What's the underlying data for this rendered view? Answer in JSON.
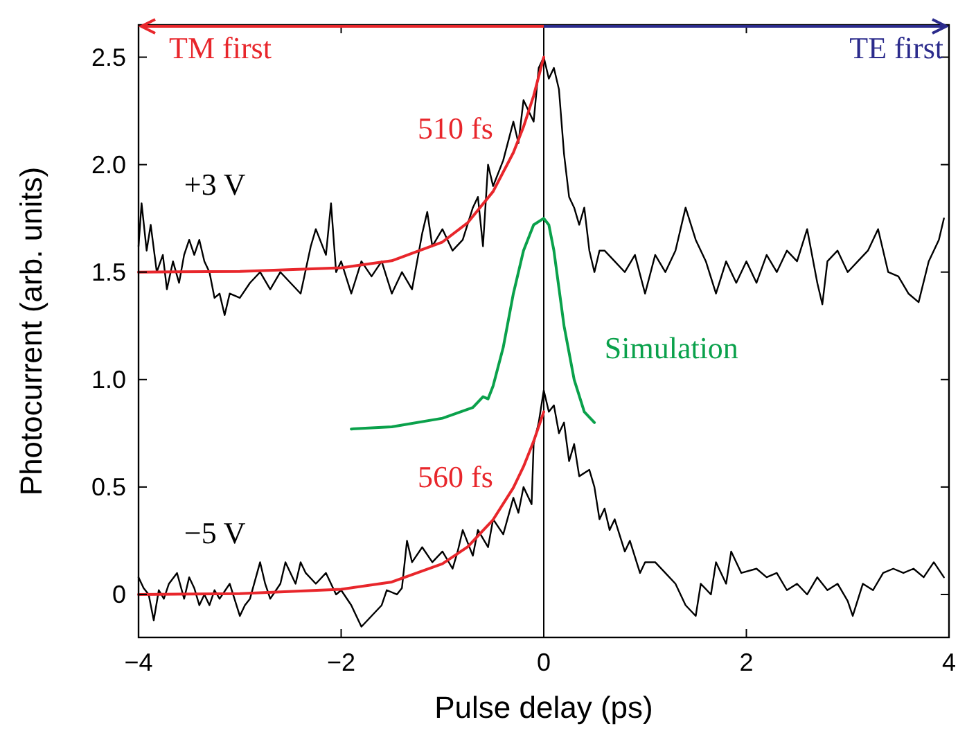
{
  "chart_data": {
    "type": "line",
    "xlabel": "Pulse delay (ps)",
    "ylabel": "Photocurrent (arb. units)",
    "xlim": [
      -4,
      4
    ],
    "ylim": [
      -0.2,
      2.65
    ],
    "xticks": [
      {
        "value": -4,
        "label": "−4"
      },
      {
        "value": -2,
        "label": "−2"
      },
      0,
      2,
      4
    ],
    "yticks": [
      0,
      0.5,
      {
        "value": 1,
        "label": "1.0"
      },
      1.5,
      {
        "value": 2,
        "label": "2.0"
      },
      2.5
    ],
    "grid": false,
    "marker": "none",
    "line_style": "solid",
    "ref_lines": [
      {
        "axis": "x",
        "value": 0,
        "color": "#000000"
      }
    ],
    "annotations": [
      "TM first",
      "TE first"
    ],
    "series": [
      {
        "name": "+3 V",
        "color": "#000000",
        "x": [
          -4.0,
          -3.97,
          -3.92,
          -3.88,
          -3.82,
          -3.76,
          -3.72,
          -3.66,
          -3.6,
          -3.55,
          -3.5,
          -3.45,
          -3.4,
          -3.35,
          -3.3,
          -3.25,
          -3.2,
          -3.15,
          -3.1,
          -3.0,
          -2.9,
          -2.8,
          -2.7,
          -2.6,
          -2.5,
          -2.4,
          -2.3,
          -2.25,
          -2.15,
          -2.1,
          -2.05,
          -2.0,
          -1.9,
          -1.8,
          -1.7,
          -1.6,
          -1.5,
          -1.4,
          -1.3,
          -1.2,
          -1.15,
          -1.1,
          -1.0,
          -0.9,
          -0.8,
          -0.7,
          -0.65,
          -0.6,
          -0.55,
          -0.5,
          -0.4,
          -0.3,
          -0.25,
          -0.2,
          -0.1,
          -0.05,
          0.0,
          0.05,
          0.1,
          0.15,
          0.2,
          0.25,
          0.3,
          0.35,
          0.4,
          0.45,
          0.5,
          0.55,
          0.6,
          0.7,
          0.8,
          0.9,
          1.0,
          1.1,
          1.2,
          1.3,
          1.4,
          1.5,
          1.6,
          1.7,
          1.8,
          1.9,
          2.0,
          2.1,
          2.2,
          2.3,
          2.4,
          2.5,
          2.6,
          2.7,
          2.75,
          2.8,
          2.9,
          3.0,
          3.1,
          3.2,
          3.3,
          3.4,
          3.5,
          3.6,
          3.7,
          3.8,
          3.9,
          3.95
        ],
        "values": [
          1.62,
          1.82,
          1.6,
          1.72,
          1.5,
          1.58,
          1.42,
          1.55,
          1.45,
          1.58,
          1.65,
          1.58,
          1.65,
          1.55,
          1.5,
          1.38,
          1.4,
          1.3,
          1.4,
          1.38,
          1.45,
          1.5,
          1.42,
          1.5,
          1.45,
          1.4,
          1.62,
          1.7,
          1.58,
          1.82,
          1.5,
          1.55,
          1.4,
          1.55,
          1.48,
          1.55,
          1.4,
          1.5,
          1.42,
          1.68,
          1.78,
          1.62,
          1.7,
          1.6,
          1.65,
          1.8,
          1.85,
          1.62,
          2.0,
          1.9,
          2.02,
          2.2,
          2.1,
          2.3,
          2.2,
          2.45,
          2.5,
          2.4,
          2.45,
          2.35,
          2.05,
          1.85,
          1.8,
          1.72,
          1.8,
          1.6,
          1.5,
          1.6,
          1.6,
          1.55,
          1.5,
          1.58,
          1.4,
          1.58,
          1.5,
          1.6,
          1.8,
          1.65,
          1.55,
          1.4,
          1.55,
          1.45,
          1.55,
          1.45,
          1.58,
          1.5,
          1.6,
          1.55,
          1.7,
          1.45,
          1.35,
          1.55,
          1.6,
          1.5,
          1.55,
          1.6,
          1.7,
          1.5,
          1.48,
          1.4,
          1.36,
          1.55,
          1.65,
          1.75
        ]
      },
      {
        "name": "510 fs",
        "color": "#e8262b",
        "x": [
          -4,
          -3,
          -2,
          -1.5,
          -1,
          -0.75,
          -0.5,
          -0.3,
          -0.2,
          -0.1,
          0
        ],
        "values": [
          1.5,
          1.503,
          1.52,
          1.553,
          1.64,
          1.73,
          1.875,
          2.056,
          2.176,
          2.32,
          2.5
        ]
      },
      {
        "name": "−5 V",
        "color": "#000000",
        "x": [
          -4.0,
          -3.95,
          -3.9,
          -3.85,
          -3.8,
          -3.75,
          -3.7,
          -3.62,
          -3.55,
          -3.5,
          -3.45,
          -3.4,
          -3.35,
          -3.3,
          -3.25,
          -3.2,
          -3.1,
          -3.0,
          -2.95,
          -2.9,
          -2.8,
          -2.75,
          -2.7,
          -2.6,
          -2.55,
          -2.45,
          -2.4,
          -2.35,
          -2.25,
          -2.15,
          -2.05,
          -2.0,
          -1.9,
          -1.8,
          -1.7,
          -1.6,
          -1.55,
          -1.45,
          -1.4,
          -1.35,
          -1.3,
          -1.2,
          -1.1,
          -1.0,
          -0.9,
          -0.85,
          -0.8,
          -0.7,
          -0.65,
          -0.55,
          -0.5,
          -0.4,
          -0.3,
          -0.25,
          -0.2,
          -0.12,
          -0.1,
          -0.05,
          0.0,
          0.05,
          0.1,
          0.15,
          0.2,
          0.25,
          0.3,
          0.35,
          0.45,
          0.5,
          0.55,
          0.6,
          0.65,
          0.7,
          0.8,
          0.85,
          0.95,
          1.0,
          1.1,
          1.2,
          1.3,
          1.4,
          1.5,
          1.55,
          1.65,
          1.7,
          1.8,
          1.85,
          1.95,
          2.1,
          2.2,
          2.3,
          2.4,
          2.5,
          2.6,
          2.7,
          2.8,
          2.9,
          3.0,
          3.05,
          3.15,
          3.25,
          3.35,
          3.45,
          3.55,
          3.65,
          3.75,
          3.85,
          3.95
        ],
        "values": [
          0.08,
          0.03,
          0.0,
          -0.12,
          0.02,
          -0.02,
          0.05,
          0.1,
          -0.02,
          0.08,
          0.03,
          -0.05,
          0.0,
          -0.05,
          0.02,
          -0.02,
          0.05,
          -0.1,
          -0.05,
          -0.02,
          0.15,
          0.05,
          -0.02,
          0.05,
          0.15,
          0.05,
          0.15,
          0.1,
          0.05,
          0.1,
          0.0,
          0.02,
          -0.05,
          -0.15,
          -0.1,
          -0.05,
          0.02,
          0.0,
          0.03,
          0.25,
          0.15,
          0.22,
          0.15,
          0.2,
          0.12,
          0.2,
          0.3,
          0.18,
          0.3,
          0.22,
          0.35,
          0.28,
          0.45,
          0.38,
          0.5,
          0.42,
          0.7,
          0.8,
          0.95,
          0.85,
          0.88,
          0.75,
          0.8,
          0.62,
          0.7,
          0.55,
          0.58,
          0.5,
          0.35,
          0.4,
          0.3,
          0.35,
          0.2,
          0.25,
          0.1,
          0.15,
          0.15,
          0.1,
          0.05,
          -0.05,
          -0.1,
          0.05,
          0.0,
          0.15,
          0.05,
          0.2,
          0.1,
          0.12,
          0.08,
          0.1,
          0.02,
          0.05,
          0.0,
          0.08,
          0.02,
          0.05,
          -0.03,
          -0.1,
          0.05,
          0.02,
          0.1,
          0.12,
          0.1,
          0.12,
          0.08,
          0.15,
          0.08
        ]
      },
      {
        "name": "560 fs",
        "color": "#e8262b",
        "x": [
          -4,
          -3,
          -2,
          -1.5,
          -1,
          -0.75,
          -0.5,
          -0.3,
          -0.2,
          -0.1,
          0
        ],
        "values": [
          0.0,
          0.004,
          0.024,
          0.058,
          0.143,
          0.222,
          0.348,
          0.497,
          0.595,
          0.713,
          0.85
        ]
      },
      {
        "name": "Simulation",
        "color": "#0aa14b",
        "x": [
          -1.9,
          -1.5,
          -1.0,
          -0.7,
          -0.6,
          -0.55,
          -0.5,
          -0.4,
          -0.3,
          -0.2,
          -0.1,
          0.0,
          0.05,
          0.1,
          0.2,
          0.3,
          0.4,
          0.5
        ],
        "values": [
          0.77,
          0.78,
          0.82,
          0.87,
          0.92,
          0.91,
          0.97,
          1.15,
          1.4,
          1.6,
          1.72,
          1.75,
          1.72,
          1.6,
          1.25,
          1.0,
          0.85,
          0.8
        ]
      }
    ]
  }
}
